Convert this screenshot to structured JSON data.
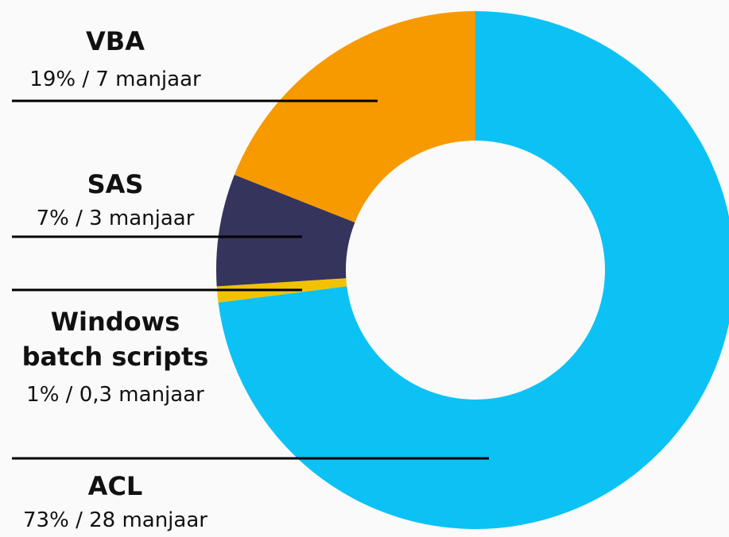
{
  "chart_data": {
    "type": "donut",
    "categories": [
      "ACL",
      "Windows batch scripts",
      "SAS",
      "VBA"
    ],
    "values": [
      73,
      1,
      7,
      19
    ],
    "value_labels": [
      "73% / 28 manjaar",
      "1% / 0,3 manjaar",
      "7% / 3 manjaar",
      "19% / 7 manjaar"
    ],
    "colors": [
      "#0cc2f4",
      "#f2c200",
      "#34345c",
      "#f79a00"
    ]
  }
}
